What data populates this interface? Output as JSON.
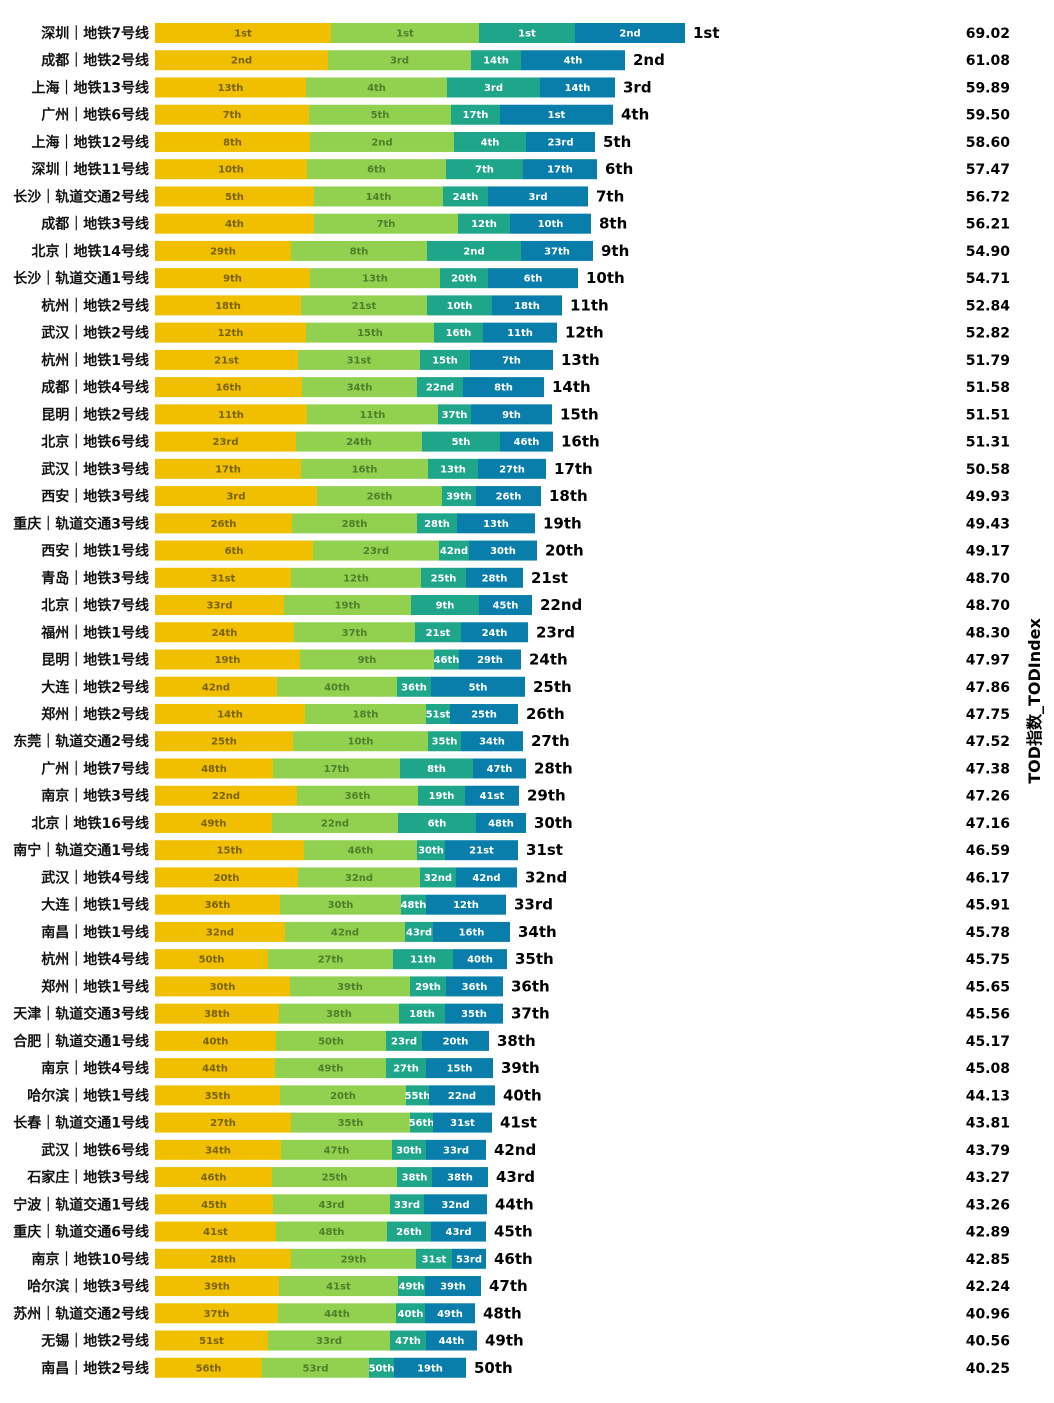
{
  "chart_data": {
    "type": "bar",
    "orientation": "horizontal",
    "stacked": true,
    "right_axis_title": "TOD指数_TODIndex",
    "segment_colors": [
      "#f0c000",
      "#92d050",
      "#1ea58a",
      "#0a7eaa"
    ],
    "segment_label_colors": [
      "#7a6200",
      "#4f7f2a",
      "#ffffff",
      "#ffffff"
    ],
    "rows": [
      {
        "name": "深圳｜地铁7号线",
        "segments": [
          17.6,
          14.8,
          9.6,
          11.0
        ],
        "segment_ranks": [
          "1st",
          "1st",
          "1st",
          "2nd"
        ],
        "rank": "1st",
        "value": "69.02"
      },
      {
        "name": "成都｜地铁2号线",
        "segments": [
          17.3,
          14.3,
          5.0,
          10.4
        ],
        "segment_ranks": [
          "2nd",
          "3rd",
          "14th",
          "4th"
        ],
        "rank": "2nd",
        "value": "61.08"
      },
      {
        "name": "上海｜地铁13号线",
        "segments": [
          15.1,
          14.1,
          9.3,
          7.5
        ],
        "segment_ranks": [
          "13th",
          "4th",
          "3rd",
          "14th"
        ],
        "rank": "3rd",
        "value": "59.89"
      },
      {
        "name": "广州｜地铁6号线",
        "segments": [
          15.4,
          14.2,
          4.9,
          11.3
        ],
        "segment_ranks": [
          "7th",
          "5th",
          "17th",
          "1st"
        ],
        "rank": "4th",
        "value": "59.50"
      },
      {
        "name": "上海｜地铁12号线",
        "segments": [
          15.5,
          14.4,
          7.2,
          6.9
        ],
        "segment_ranks": [
          "8th",
          "2nd",
          "4th",
          "23rd"
        ],
        "rank": "5th",
        "value": "58.60"
      },
      {
        "name": "深圳｜地铁11号线",
        "segments": [
          15.2,
          13.9,
          7.7,
          7.4
        ],
        "segment_ranks": [
          "10th",
          "6th",
          "7th",
          "17th"
        ],
        "rank": "6th",
        "value": "57.47"
      },
      {
        "name": "长沙｜轨道交通2号线",
        "segments": [
          15.9,
          12.9,
          4.5,
          10.0
        ],
        "segment_ranks": [
          "5th",
          "14th",
          "24th",
          "3rd"
        ],
        "rank": "7th",
        "value": "56.72"
      },
      {
        "name": "成都｜地铁3号线",
        "segments": [
          15.9,
          14.4,
          5.2,
          8.1
        ],
        "segment_ranks": [
          "4th",
          "7th",
          "12th",
          "10th"
        ],
        "rank": "8th",
        "value": "56.21"
      },
      {
        "name": "北京｜地铁14号线",
        "segments": [
          13.6,
          13.6,
          9.4,
          7.2
        ],
        "segment_ranks": [
          "29th",
          "8th",
          "2nd",
          "37th"
        ],
        "rank": "9th",
        "value": "54.90"
      },
      {
        "name": "长沙｜轨道交通1号线",
        "segments": [
          15.5,
          13.0,
          4.8,
          9.0
        ],
        "segment_ranks": [
          "9th",
          "13th",
          "20th",
          "6th"
        ],
        "rank": "10th",
        "value": "54.71"
      },
      {
        "name": "杭州｜地铁2号线",
        "segments": [
          14.6,
          12.6,
          6.5,
          7.0
        ],
        "segment_ranks": [
          "18th",
          "21st",
          "10th",
          "18th"
        ],
        "rank": "11th",
        "value": "52.84"
      },
      {
        "name": "武汉｜地铁2号线",
        "segments": [
          15.1,
          12.8,
          4.9,
          7.4
        ],
        "segment_ranks": [
          "12th",
          "15th",
          "16th",
          "11th"
        ],
        "rank": "12th",
        "value": "52.82"
      },
      {
        "name": "杭州｜地铁1号线",
        "segments": [
          14.3,
          12.2,
          5.0,
          8.3
        ],
        "segment_ranks": [
          "21st",
          "31st",
          "15th",
          "7th"
        ],
        "rank": "13th",
        "value": "51.79"
      },
      {
        "name": "成都｜地铁4号线",
        "segments": [
          14.7,
          11.5,
          4.6,
          8.1
        ],
        "segment_ranks": [
          "16th",
          "34th",
          "22nd",
          "8th"
        ],
        "rank": "14th",
        "value": "51.58"
      },
      {
        "name": "昆明｜地铁2号线",
        "segments": [
          15.2,
          13.1,
          3.3,
          8.1
        ],
        "segment_ranks": [
          "11th",
          "11th",
          "37th",
          "9th"
        ],
        "rank": "15th",
        "value": "51.51"
      },
      {
        "name": "北京｜地铁6号线",
        "segments": [
          14.1,
          12.6,
          7.8,
          5.3
        ],
        "segment_ranks": [
          "23rd",
          "24th",
          "5th",
          "46th"
        ],
        "rank": "16th",
        "value": "51.31"
      },
      {
        "name": "武汉｜地铁3号线",
        "segments": [
          14.6,
          12.7,
          5.0,
          6.8
        ],
        "segment_ranks": [
          "17th",
          "16th",
          "13th",
          "27th"
        ],
        "rank": "17th",
        "value": "50.58"
      },
      {
        "name": "西安｜地铁3号线",
        "segments": [
          16.2,
          12.5,
          3.4,
          6.5
        ],
        "segment_ranks": [
          "3rd",
          "26th",
          "39th",
          "26th"
        ],
        "rank": "18th",
        "value": "49.93"
      },
      {
        "name": "重庆｜轨道交通3号线",
        "segments": [
          13.7,
          12.5,
          4.0,
          7.8
        ],
        "segment_ranks": [
          "26th",
          "28th",
          "28th",
          "13th"
        ],
        "rank": "19th",
        "value": "49.43"
      },
      {
        "name": "西安｜地铁1号线",
        "segments": [
          15.8,
          12.6,
          3.0,
          6.8
        ],
        "segment_ranks": [
          "6th",
          "23rd",
          "42nd",
          "30th"
        ],
        "rank": "20th",
        "value": "49.17"
      },
      {
        "name": "青岛｜地铁3号线",
        "segments": [
          13.6,
          13.0,
          4.5,
          5.7
        ],
        "segment_ranks": [
          "31st",
          "12th",
          "25th",
          "28th"
        ],
        "rank": "21st",
        "value": "48.70"
      },
      {
        "name": "北京｜地铁7号线",
        "segments": [
          12.9,
          12.7,
          6.8,
          5.3
        ],
        "segment_ranks": [
          "33rd",
          "19th",
          "9th",
          "45th"
        ],
        "rank": "22nd",
        "value": "48.70"
      },
      {
        "name": "福州｜地铁1号线",
        "segments": [
          13.9,
          12.1,
          4.6,
          6.7
        ],
        "segment_ranks": [
          "24th",
          "37th",
          "21st",
          "24th"
        ],
        "rank": "23rd",
        "value": "48.30"
      },
      {
        "name": "昆明｜地铁1号线",
        "segments": [
          14.5,
          13.4,
          2.5,
          6.2
        ],
        "segment_ranks": [
          "19th",
          "9th",
          "46th",
          "29th"
        ],
        "rank": "24th",
        "value": "47.97"
      },
      {
        "name": "大连｜地铁2号线",
        "segments": [
          12.2,
          12.0,
          3.4,
          9.4
        ],
        "segment_ranks": [
          "42nd",
          "40th",
          "36th",
          "5th"
        ],
        "rank": "25th",
        "value": "47.86"
      },
      {
        "name": "郑州｜地铁2号线",
        "segments": [
          15.0,
          12.1,
          2.4,
          6.8
        ],
        "segment_ranks": [
          "14th",
          "18th",
          "51st",
          "25th"
        ],
        "rank": "26th",
        "value": "47.75"
      },
      {
        "name": "东莞｜轨道交通2号线",
        "segments": [
          13.8,
          13.5,
          3.3,
          6.2
        ],
        "segment_ranks": [
          "25th",
          "10th",
          "35th",
          "34th"
        ],
        "rank": "27th",
        "value": "47.52"
      },
      {
        "name": "广州｜地铁7号线",
        "segments": [
          11.8,
          12.7,
          7.3,
          5.3
        ],
        "segment_ranks": [
          "48th",
          "17th",
          "8th",
          "47th"
        ],
        "rank": "28th",
        "value": "47.38"
      },
      {
        "name": "南京｜地铁3号线",
        "segments": [
          14.2,
          12.1,
          4.7,
          5.4
        ],
        "segment_ranks": [
          "22nd",
          "36th",
          "19th",
          "41st"
        ],
        "rank": "29th",
        "value": "47.26"
      },
      {
        "name": "北京｜地铁16号线",
        "segments": [
          11.7,
          12.6,
          7.8,
          5.0
        ],
        "segment_ranks": [
          "49th",
          "22nd",
          "6th",
          "48th"
        ],
        "rank": "30th",
        "value": "47.16"
      },
      {
        "name": "南宁｜轨道交通1号线",
        "segments": [
          14.9,
          11.3,
          2.8,
          7.3
        ],
        "segment_ranks": [
          "15th",
          "46th",
          "30th",
          "21st"
        ],
        "rank": "31st",
        "value": "46.59"
      },
      {
        "name": "武汉｜地铁4号线",
        "segments": [
          14.3,
          12.2,
          3.6,
          6.1
        ],
        "segment_ranks": [
          "20th",
          "32nd",
          "32nd",
          "42nd"
        ],
        "rank": "32nd",
        "value": "46.17"
      },
      {
        "name": "大连｜地铁1号线",
        "segments": [
          12.5,
          12.1,
          2.5,
          8.0
        ],
        "segment_ranks": [
          "36th",
          "30th",
          "48th",
          "12th"
        ],
        "rank": "33rd",
        "value": "45.91"
      },
      {
        "name": "南昌｜地铁1号线",
        "segments": [
          13.0,
          12.0,
          2.8,
          7.7
        ],
        "segment_ranks": [
          "32nd",
          "42nd",
          "43rd",
          "16th"
        ],
        "rank": "34th",
        "value": "45.78"
      },
      {
        "name": "杭州｜地铁4号线",
        "segments": [
          11.3,
          12.5,
          6.0,
          5.4
        ],
        "segment_ranks": [
          "50th",
          "27th",
          "11th",
          "40th"
        ],
        "rank": "35th",
        "value": "45.75"
      },
      {
        "name": "郑州｜地铁1号线",
        "segments": [
          13.5,
          12.0,
          3.6,
          5.7
        ],
        "segment_ranks": [
          "30th",
          "39th",
          "29th",
          "36th"
        ],
        "rank": "36th",
        "value": "45.65"
      },
      {
        "name": "天津｜轨道交通3号线",
        "segments": [
          12.4,
          12.0,
          4.6,
          5.8
        ],
        "segment_ranks": [
          "38th",
          "38th",
          "18th",
          "35th"
        ],
        "rank": "37th",
        "value": "45.56"
      },
      {
        "name": "合肥｜轨道交通1号线",
        "segments": [
          12.1,
          11.0,
          3.6,
          6.7
        ],
        "segment_ranks": [
          "40th",
          "50th",
          "23rd",
          "20th"
        ],
        "rank": "38th",
        "value": "45.17"
      },
      {
        "name": "南京｜地铁4号线",
        "segments": [
          12.0,
          11.1,
          4.0,
          6.7
        ],
        "segment_ranks": [
          "44th",
          "49th",
          "27th",
          "15th"
        ],
        "rank": "39th",
        "value": "45.08"
      },
      {
        "name": "哈尔滨｜地铁1号线",
        "segments": [
          12.5,
          12.6,
          2.3,
          6.6
        ],
        "segment_ranks": [
          "35th",
          "20th",
          "55th",
          "22nd"
        ],
        "rank": "40th",
        "value": "44.13"
      },
      {
        "name": "长春｜轨道交通1号线",
        "segments": [
          13.6,
          11.9,
          2.3,
          5.9
        ],
        "segment_ranks": [
          "27th",
          "35th",
          "56th",
          "31st"
        ],
        "rank": "41st",
        "value": "43.81"
      },
      {
        "name": "武汉｜地铁6号线",
        "segments": [
          12.6,
          11.1,
          3.4,
          6.0
        ],
        "segment_ranks": [
          "34th",
          "47th",
          "30th",
          "33rd"
        ],
        "rank": "42nd",
        "value": "43.79"
      },
      {
        "name": "石家庄｜地铁3号线",
        "segments": [
          11.7,
          12.5,
          3.5,
          5.6
        ],
        "segment_ranks": [
          "46th",
          "25th",
          "38th",
          "38th"
        ],
        "rank": "43rd",
        "value": "43.27"
      },
      {
        "name": "宁波｜轨道交通1号线",
        "segments": [
          11.8,
          11.7,
          3.4,
          6.3
        ],
        "segment_ranks": [
          "45th",
          "43rd",
          "33rd",
          "32nd"
        ],
        "rank": "44th",
        "value": "43.26"
      },
      {
        "name": "重庆｜轨道交通6号线",
        "segments": [
          12.1,
          11.1,
          4.4,
          5.5
        ],
        "segment_ranks": [
          "41st",
          "48th",
          "26th",
          "43rd"
        ],
        "rank": "45th",
        "value": "42.89"
      },
      {
        "name": "南京｜地铁10号线",
        "segments": [
          13.6,
          12.5,
          3.6,
          3.4
        ],
        "segment_ranks": [
          "28th",
          "29th",
          "31st",
          "53rd"
        ],
        "rank": "46th",
        "value": "42.85"
      },
      {
        "name": "哈尔滨｜地铁3号线",
        "segments": [
          12.4,
          11.9,
          2.7,
          5.6
        ],
        "segment_ranks": [
          "39th",
          "41st",
          "49th",
          "39th"
        ],
        "rank": "47th",
        "value": "42.24"
      },
      {
        "name": "苏州｜轨道交通2号线",
        "segments": [
          12.3,
          11.8,
          2.9,
          5.0
        ],
        "segment_ranks": [
          "37th",
          "44th",
          "40th",
          "49th"
        ],
        "rank": "48th",
        "value": "40.96"
      },
      {
        "name": "无锡｜地铁2号线",
        "segments": [
          11.3,
          12.2,
          3.6,
          5.1
        ],
        "segment_ranks": [
          "51st",
          "33rd",
          "47th",
          "44th"
        ],
        "rank": "49th",
        "value": "40.56"
      },
      {
        "name": "南昌｜地铁2号线",
        "segments": [
          10.7,
          10.7,
          2.5,
          7.2
        ],
        "segment_ranks": [
          "56th",
          "53rd",
          "50th",
          "19th"
        ],
        "rank": "50th",
        "value": "40.25"
      }
    ]
  }
}
